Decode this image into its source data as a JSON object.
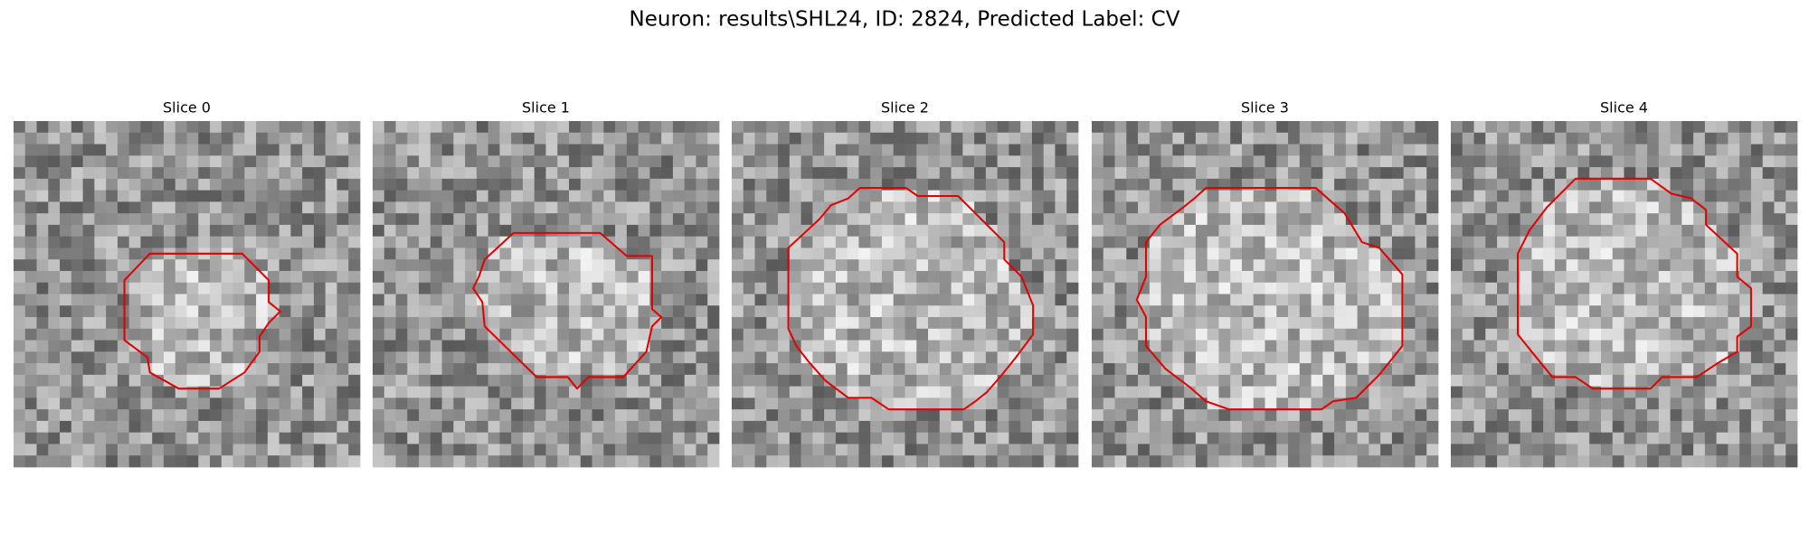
{
  "title": "Neuron: results\\SHL24, ID: 2824, Predicted Label: CV",
  "panels": [
    {
      "title": "Slice 0"
    },
    {
      "title": "Slice 1"
    },
    {
      "title": "Slice 2"
    },
    {
      "title": "Slice 3"
    },
    {
      "title": "Slice 4"
    }
  ]
}
